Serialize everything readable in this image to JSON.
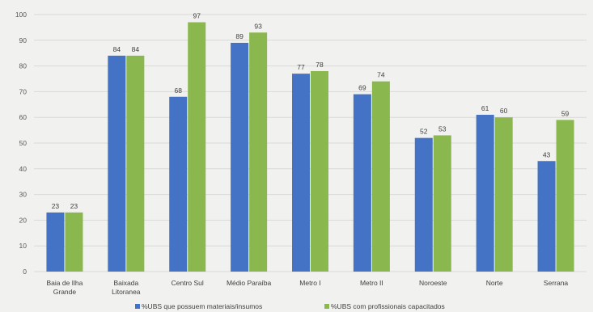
{
  "chart_data": {
    "type": "bar",
    "title": "",
    "xlabel": "",
    "ylabel": "",
    "ylim": [
      0,
      100
    ],
    "yticks": [
      0,
      10,
      20,
      30,
      40,
      50,
      60,
      70,
      80,
      90,
      100
    ],
    "grid": true,
    "legend_position": "bottom",
    "categories": [
      [
        "Baia de Ilha",
        "Grande"
      ],
      [
        "Baixada",
        "Litoranea"
      ],
      [
        "Centro Sul"
      ],
      [
        "Médio Paraíba"
      ],
      [
        "Metro I"
      ],
      [
        "Metro II"
      ],
      [
        "Noroeste"
      ],
      [
        "Norte"
      ],
      [
        "Serrana"
      ]
    ],
    "series": [
      {
        "name": "%UBS que possuem materiais/insumos",
        "color": "#4472c4",
        "values": [
          23,
          84,
          68,
          89,
          77,
          69,
          52,
          61,
          43
        ]
      },
      {
        "name": "%UBS com profissionais capacitados",
        "color": "#8ab84e",
        "values": [
          23,
          84,
          97,
          93,
          78,
          74,
          53,
          60,
          59
        ]
      }
    ]
  }
}
